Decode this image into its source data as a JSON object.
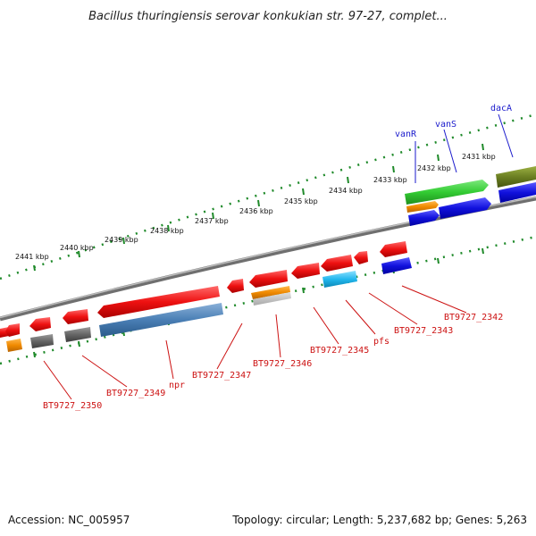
{
  "title": "Bacillus thuringiensis serovar konkukian str. 97-27, complet...",
  "footer": {
    "accession": "Accession: NC_005957",
    "topology": "Topology: circular; Length: 5,237,682 bp; Genes: 5,263"
  },
  "colors": {
    "backbone": "#8a8a8a",
    "tick": "#1f8a2a",
    "forward_label": "#1a1acc",
    "reverse_label": "#cc1111",
    "red_gene": "#ee1111",
    "blue_gene": "#1111dd",
    "green_gene": "#33cc33",
    "olive_gene": "#6b7f22",
    "orange_gene": "#f08a00",
    "gray_gene": "#666666",
    "steel_gene": "#4a7fb5",
    "cyan_gene": "#22b8ee"
  },
  "kbp_labels": [
    "2441 kbp",
    "2440 kbp",
    "2439 kbp",
    "2438 kbp",
    "2437 kbp",
    "2436 kbp",
    "2435 kbp",
    "2434 kbp",
    "2433 kbp",
    "2432 kbp",
    "2431 kbp"
  ],
  "forward_labels": [
    "vanR",
    "vanS",
    "dacA"
  ],
  "reverse_labels": [
    "BT9727_2350",
    "BT9727_2349",
    "npr",
    "BT9727_2347",
    "BT9727_2346",
    "BT9727_2345",
    "pfs",
    "BT9727_2343",
    "BT9727_2342"
  ]
}
